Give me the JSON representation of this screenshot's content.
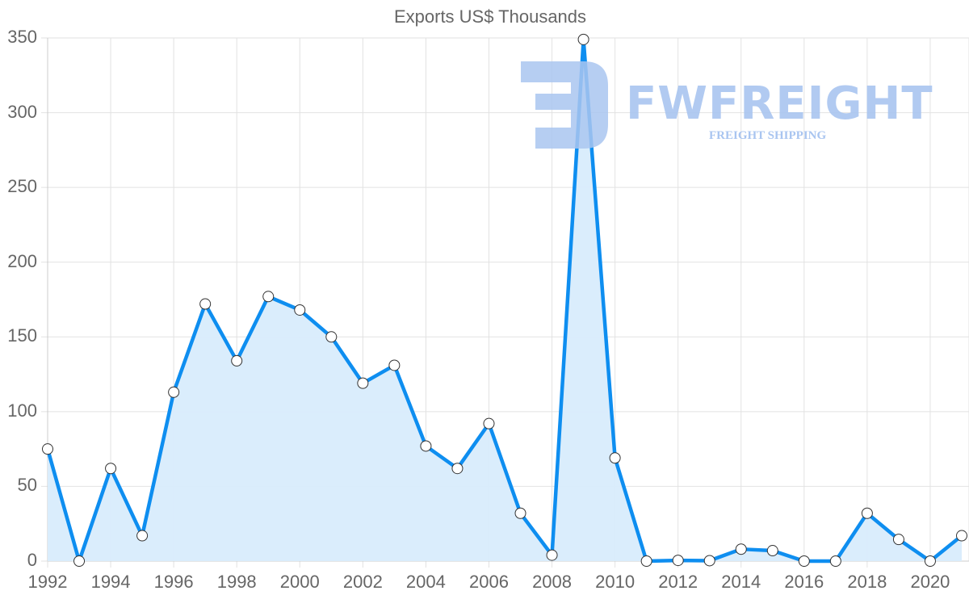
{
  "chart_data": {
    "type": "area",
    "title": "Exports US$ Thousands",
    "xlabel": "",
    "ylabel": "",
    "x": [
      1992,
      1993,
      1994,
      1995,
      1996,
      1997,
      1998,
      1999,
      2000,
      2001,
      2002,
      2003,
      2004,
      2005,
      2006,
      2007,
      2008,
      2009,
      2010,
      2011,
      2012,
      2013,
      2014,
      2015,
      2016,
      2017,
      2018,
      2019,
      2020,
      2021
    ],
    "series": [
      {
        "name": "Exports US$ Thousands",
        "values": [
          75,
          0,
          62,
          17,
          113,
          172,
          134,
          177,
          168,
          150,
          119,
          131,
          77,
          62,
          92,
          32,
          4,
          349,
          69,
          0,
          0.5,
          0.3,
          8,
          7,
          0,
          0,
          32,
          14.5,
          0,
          17
        ]
      }
    ],
    "ylim": [
      0,
      350
    ],
    "yticks": [
      "350",
      "300",
      "250",
      "200",
      "150",
      "100",
      "50",
      "0"
    ],
    "xticks": [
      "1992",
      "1994",
      "1996",
      "1998",
      "2000",
      "2002",
      "2004",
      "2006",
      "2008",
      "2010",
      "2012",
      "2014",
      "2016",
      "2018",
      "2020"
    ],
    "grid": true,
    "legend": "none",
    "colors": {
      "line": "#0e8ef0",
      "fill": "#d8ecfc",
      "grid": "#e2e2e2",
      "text": "#666666"
    }
  },
  "watermark": {
    "brand": "FWFREIGHT",
    "tagline": "FREIGHT SHIPPING"
  }
}
